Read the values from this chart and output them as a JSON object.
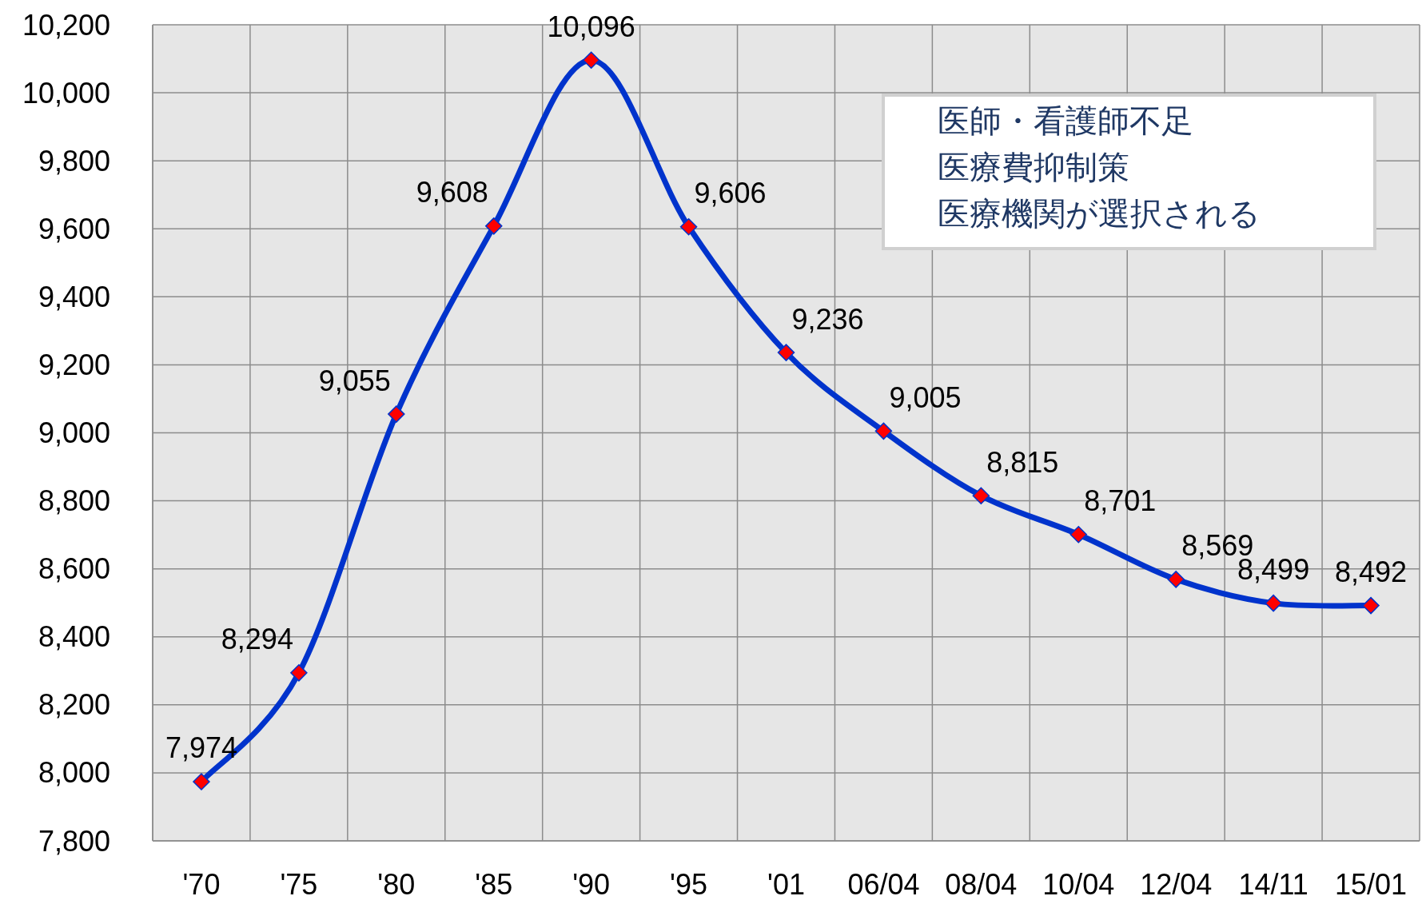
{
  "chart_data": {
    "type": "line",
    "categories": [
      "'70",
      "'75",
      "'80",
      "'85",
      "'90",
      "'95",
      "'01",
      "06/04",
      "08/04",
      "10/04",
      "12/04",
      "14/11",
      "15/01"
    ],
    "series": [
      {
        "color": "#0033cc",
        "values": [
          7974,
          8294,
          9055,
          9608,
          10096,
          9606,
          9236,
          9005,
          8815,
          8701,
          8569,
          8499,
          8492
        ],
        "value_labels": [
          "7,974",
          "8,294",
          "9,055",
          "9,608",
          "10,096",
          "9,606",
          "9,236",
          "9,005",
          "8,815",
          "8,701",
          "8,569",
          "8,499",
          "8,492"
        ]
      }
    ],
    "ylim": [
      7800,
      10200
    ],
    "yticks": [
      {
        "value": 7800,
        "label": "7,800"
      },
      {
        "value": 8000,
        "label": "8,000"
      },
      {
        "value": 8200,
        "label": "8,200"
      },
      {
        "value": 8400,
        "label": "8,400"
      },
      {
        "value": 8600,
        "label": "8,600"
      },
      {
        "value": 8800,
        "label": "8,800"
      },
      {
        "value": 9000,
        "label": "9,000"
      },
      {
        "value": 9200,
        "label": "9,200"
      },
      {
        "value": 9400,
        "label": "9,400"
      },
      {
        "value": 9600,
        "label": "9,600"
      },
      {
        "value": 9800,
        "label": "9,800"
      },
      {
        "value": 10000,
        "label": "10,000"
      },
      {
        "value": 10200,
        "label": "10,200"
      }
    ],
    "grid": true,
    "marker": "diamond",
    "annotations": [
      "医師・看護師不足",
      "医療費抑制策",
      "医療機関が選択される"
    ]
  }
}
